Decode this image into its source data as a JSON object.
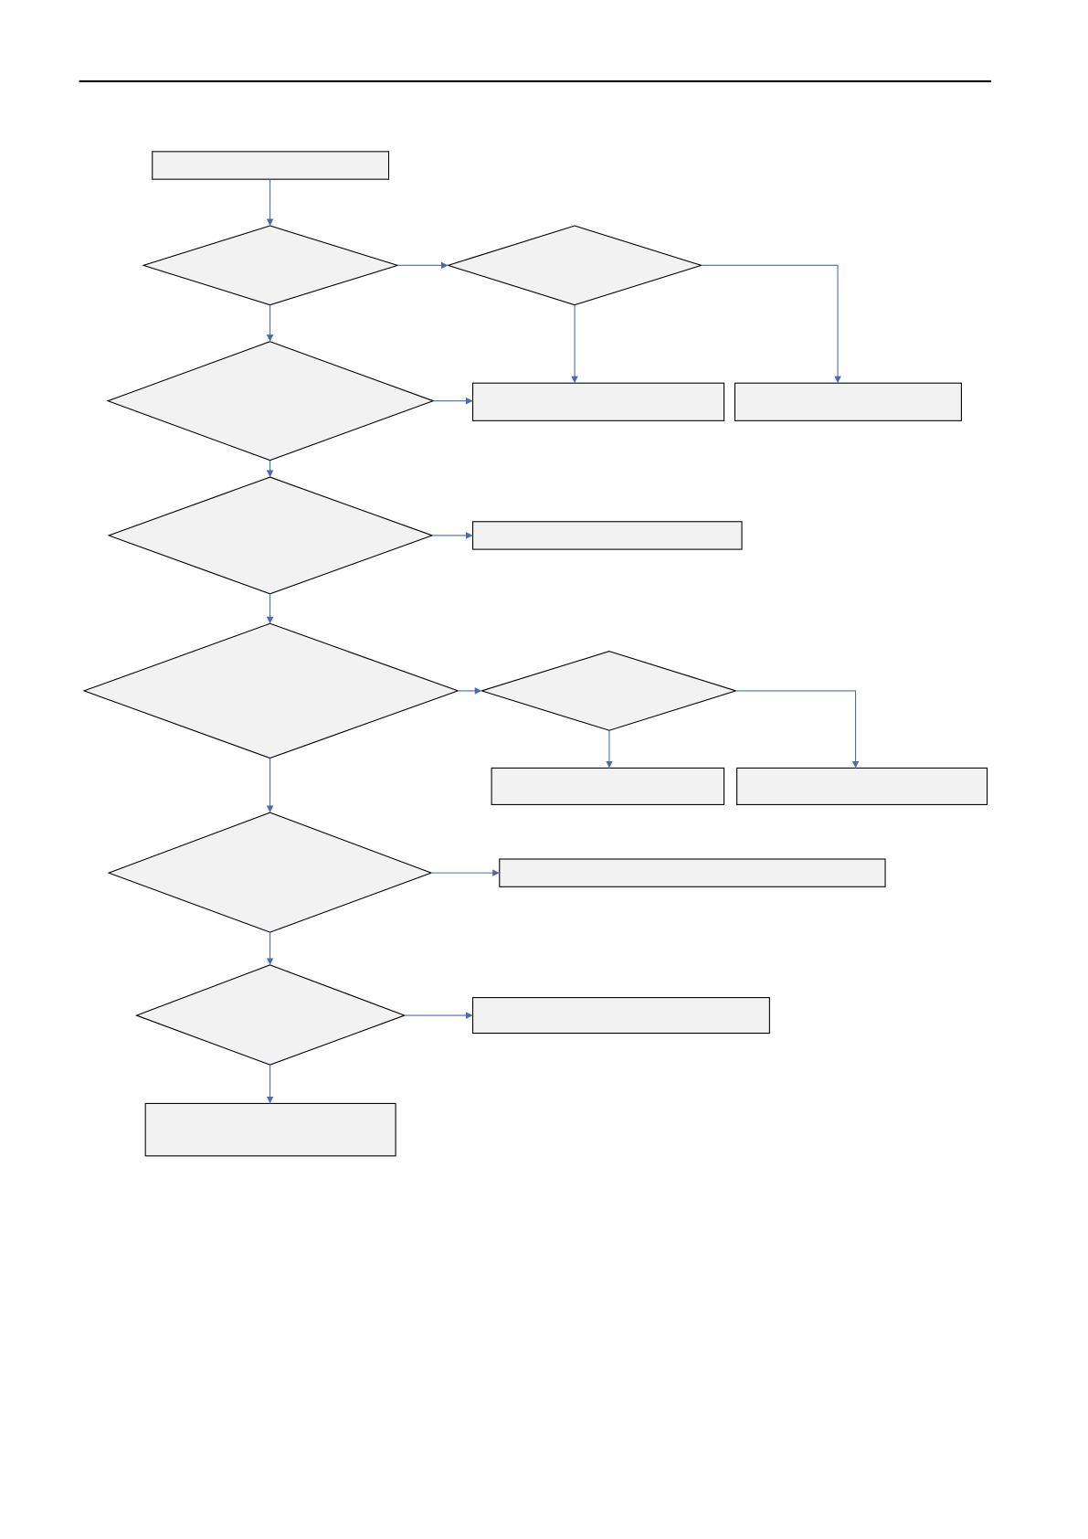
{
  "diagram": {
    "type": "flowchart",
    "node_fill": "#f1f2f1",
    "node_stroke": "#000000",
    "connector_color": "#4a6aad",
    "header_rule_color": "#000000",
    "labels_visible": false
  }
}
